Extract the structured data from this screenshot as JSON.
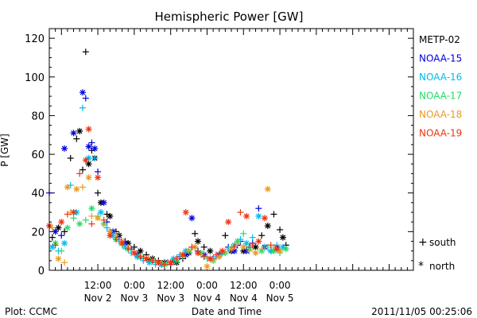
{
  "chart_data": {
    "type": "scatter",
    "title": "Hemispheric Power [GW]",
    "xlabel": "Date and Time",
    "ylabel": "P [GW]",
    "xlim_hours": [
      -4,
      116
    ],
    "ylim": [
      0,
      125
    ],
    "yticks": [
      0,
      20,
      40,
      60,
      80,
      100,
      120
    ],
    "xticks": [
      {
        "h": 12,
        "time": "12:00",
        "date": "Nov 2"
      },
      {
        "h": 24,
        "time": "0:00",
        "date": "Nov 3"
      },
      {
        "h": 36,
        "time": "12:00",
        "date": "Nov 3"
      },
      {
        "h": 48,
        "time": "0:00",
        "date": "Nov 4"
      },
      {
        "h": 60,
        "time": "12:00",
        "date": "Nov 4"
      },
      {
        "h": 72,
        "time": "0:00",
        "date": "Nov 5"
      }
    ],
    "x_origin": "2011-11-02 00:00",
    "legend_position": "right",
    "marker_legend": [
      {
        "symbol": "+",
        "label": "south"
      },
      {
        "symbol": "*",
        "label": "north"
      }
    ],
    "series": [
      {
        "name": "METP-02",
        "color": "#000000",
        "points": [
          [
            -3,
            17,
            "s"
          ],
          [
            -1,
            22,
            "n"
          ],
          [
            1,
            20,
            "s"
          ],
          [
            3,
            58,
            "s"
          ],
          [
            5,
            68,
            "s"
          ],
          [
            6,
            72,
            "n"
          ],
          [
            7,
            52,
            "s"
          ],
          [
            8,
            113,
            "s"
          ],
          [
            9,
            55,
            "n"
          ],
          [
            10,
            62,
            "s"
          ],
          [
            11,
            58,
            "n"
          ],
          [
            12,
            40,
            "s"
          ],
          [
            13,
            35,
            "n"
          ],
          [
            15,
            29,
            "s"
          ],
          [
            16,
            28,
            "n"
          ],
          [
            18,
            20,
            "s"
          ],
          [
            19,
            18,
            "n"
          ],
          [
            21,
            15,
            "s"
          ],
          [
            22,
            14,
            "n"
          ],
          [
            24,
            12,
            "s"
          ],
          [
            26,
            10,
            "n"
          ],
          [
            28,
            8,
            "s"
          ],
          [
            30,
            6,
            "n"
          ],
          [
            32,
            5,
            "s"
          ],
          [
            34,
            4,
            "n"
          ],
          [
            36,
            3,
            "s"
          ],
          [
            38,
            4,
            "n"
          ],
          [
            40,
            6,
            "s"
          ],
          [
            42,
            9,
            "n"
          ],
          [
            44,
            19,
            "s"
          ],
          [
            45,
            15,
            "n"
          ],
          [
            47,
            12,
            "s"
          ],
          [
            49,
            10,
            "n"
          ],
          [
            52,
            8,
            "s"
          ],
          [
            54,
            18,
            "s"
          ],
          [
            56,
            10,
            "n"
          ],
          [
            58,
            13,
            "s"
          ],
          [
            60,
            10,
            "n"
          ],
          [
            62,
            12,
            "s"
          ],
          [
            64,
            12,
            "n"
          ],
          [
            66,
            18,
            "s"
          ],
          [
            68,
            23,
            "n"
          ],
          [
            70,
            29,
            "s"
          ],
          [
            72,
            21,
            "s"
          ],
          [
            73,
            17,
            "n"
          ],
          [
            74,
            13,
            "s"
          ]
        ]
      },
      {
        "name": "NOAA-15",
        "color": "#0000dd",
        "points": [
          [
            -4,
            40,
            "s"
          ],
          [
            -2,
            20,
            "n"
          ],
          [
            0,
            18,
            "s"
          ],
          [
            1,
            63,
            "n"
          ],
          [
            4,
            71,
            "n"
          ],
          [
            7,
            92,
            "n"
          ],
          [
            8,
            89,
            "s"
          ],
          [
            9,
            64,
            "n"
          ],
          [
            10,
            66,
            "s"
          ],
          [
            11,
            63,
            "n"
          ],
          [
            12,
            51,
            "s"
          ],
          [
            14,
            35,
            "n"
          ],
          [
            15,
            25,
            "s"
          ],
          [
            17,
            20,
            "n"
          ],
          [
            19,
            16,
            "s"
          ],
          [
            21,
            14,
            "n"
          ],
          [
            23,
            11,
            "s"
          ],
          [
            25,
            8,
            "n"
          ],
          [
            27,
            6,
            "s"
          ],
          [
            29,
            5,
            "n"
          ],
          [
            31,
            4,
            "s"
          ],
          [
            33,
            3,
            "n"
          ],
          [
            35,
            4,
            "s"
          ],
          [
            37,
            5,
            "n"
          ],
          [
            39,
            7,
            "s"
          ],
          [
            41,
            8,
            "n"
          ],
          [
            43,
            27,
            "n"
          ],
          [
            45,
            10,
            "s"
          ],
          [
            47,
            8,
            "n"
          ],
          [
            50,
            6,
            "s"
          ],
          [
            52,
            8,
            "n"
          ],
          [
            55,
            12,
            "s"
          ],
          [
            57,
            10,
            "n"
          ],
          [
            59,
            15,
            "s"
          ],
          [
            61,
            10,
            "n"
          ],
          [
            63,
            14,
            "s"
          ],
          [
            65,
            32,
            "s"
          ],
          [
            67,
            12,
            "n"
          ],
          [
            69,
            10,
            "s"
          ],
          [
            71,
            12,
            "n"
          ]
        ]
      },
      {
        "name": "NOAA-16",
        "color": "#00bbee",
        "points": [
          [
            -3,
            12,
            "n"
          ],
          [
            -1,
            10,
            "s"
          ],
          [
            1,
            14,
            "n"
          ],
          [
            3,
            44,
            "s"
          ],
          [
            5,
            30,
            "n"
          ],
          [
            7,
            84,
            "s"
          ],
          [
            9,
            58,
            "n"
          ],
          [
            11,
            58,
            "s"
          ],
          [
            13,
            30,
            "n"
          ],
          [
            15,
            22,
            "s"
          ],
          [
            17,
            18,
            "n"
          ],
          [
            19,
            15,
            "s"
          ],
          [
            21,
            12,
            "n"
          ],
          [
            23,
            9,
            "s"
          ],
          [
            25,
            7,
            "n"
          ],
          [
            27,
            5,
            "s"
          ],
          [
            29,
            4,
            "n"
          ],
          [
            31,
            3,
            "s"
          ],
          [
            33,
            3,
            "n"
          ],
          [
            35,
            4,
            "s"
          ],
          [
            37,
            6,
            "n"
          ],
          [
            39,
            8,
            "s"
          ],
          [
            41,
            10,
            "n"
          ],
          [
            43,
            12,
            "s"
          ],
          [
            45,
            9,
            "n"
          ],
          [
            47,
            7,
            "s"
          ],
          [
            49,
            6,
            "n"
          ],
          [
            51,
            7,
            "s"
          ],
          [
            53,
            9,
            "n"
          ],
          [
            55,
            11,
            "s"
          ],
          [
            57,
            13,
            "n"
          ],
          [
            59,
            16,
            "s"
          ],
          [
            61,
            14,
            "n"
          ],
          [
            63,
            17,
            "s"
          ],
          [
            65,
            28,
            "n"
          ],
          [
            67,
            12,
            "s"
          ],
          [
            69,
            10,
            "n"
          ],
          [
            71,
            13,
            "s"
          ],
          [
            73,
            12,
            "n"
          ]
        ]
      },
      {
        "name": "NOAA-17",
        "color": "#22dd66",
        "points": [
          [
            -2,
            14,
            "n"
          ],
          [
            0,
            10,
            "s"
          ],
          [
            2,
            22,
            "n"
          ],
          [
            4,
            27,
            "s"
          ],
          [
            6,
            24,
            "n"
          ],
          [
            8,
            26,
            "s"
          ],
          [
            10,
            32,
            "n"
          ],
          [
            12,
            28,
            "s"
          ],
          [
            14,
            24,
            "n"
          ],
          [
            16,
            20,
            "s"
          ],
          [
            18,
            16,
            "n"
          ],
          [
            20,
            13,
            "s"
          ],
          [
            22,
            11,
            "n"
          ],
          [
            24,
            9,
            "s"
          ],
          [
            26,
            7,
            "n"
          ],
          [
            28,
            6,
            "s"
          ],
          [
            30,
            5,
            "n"
          ],
          [
            32,
            4,
            "s"
          ],
          [
            34,
            3,
            "n"
          ],
          [
            36,
            4,
            "s"
          ],
          [
            38,
            5,
            "n"
          ],
          [
            40,
            7,
            "s"
          ],
          [
            42,
            10,
            "n"
          ],
          [
            44,
            12,
            "s"
          ],
          [
            46,
            9,
            "n"
          ],
          [
            48,
            6,
            "s"
          ],
          [
            50,
            5,
            "n"
          ],
          [
            52,
            7,
            "s"
          ],
          [
            54,
            9,
            "n"
          ],
          [
            56,
            12,
            "s"
          ],
          [
            58,
            15,
            "n"
          ],
          [
            60,
            19,
            "s"
          ],
          [
            62,
            11,
            "n"
          ],
          [
            64,
            9,
            "s"
          ],
          [
            66,
            10,
            "n"
          ],
          [
            68,
            12,
            "s"
          ],
          [
            70,
            10,
            "n"
          ],
          [
            72,
            9,
            "s"
          ],
          [
            74,
            11,
            "n"
          ]
        ]
      },
      {
        "name": "NOAA-18",
        "color": "#ee9922",
        "points": [
          [
            -3,
            22,
            "s"
          ],
          [
            -1,
            6,
            "n"
          ],
          [
            1,
            4,
            "s"
          ],
          [
            2,
            43,
            "n"
          ],
          [
            3,
            30,
            "s"
          ],
          [
            5,
            42,
            "n"
          ],
          [
            7,
            43,
            "s"
          ],
          [
            9,
            48,
            "n"
          ],
          [
            10,
            28,
            "s"
          ],
          [
            12,
            27,
            "n"
          ],
          [
            14,
            24,
            "s"
          ],
          [
            16,
            20,
            "n"
          ],
          [
            18,
            18,
            "s"
          ],
          [
            20,
            15,
            "n"
          ],
          [
            22,
            12,
            "s"
          ],
          [
            24,
            9,
            "n"
          ],
          [
            26,
            7,
            "s"
          ],
          [
            28,
            6,
            "n"
          ],
          [
            30,
            5,
            "s"
          ],
          [
            32,
            4,
            "n"
          ],
          [
            34,
            3,
            "s"
          ],
          [
            36,
            4,
            "n"
          ],
          [
            38,
            6,
            "s"
          ],
          [
            40,
            8,
            "n"
          ],
          [
            42,
            10,
            "s"
          ],
          [
            44,
            12,
            "n"
          ],
          [
            46,
            8,
            "s"
          ],
          [
            48,
            2,
            "n"
          ],
          [
            50,
            5,
            "s"
          ],
          [
            52,
            7,
            "n"
          ],
          [
            54,
            9,
            "s"
          ],
          [
            56,
            11,
            "n"
          ],
          [
            58,
            14,
            "s"
          ],
          [
            60,
            12,
            "n"
          ],
          [
            62,
            10,
            "s"
          ],
          [
            64,
            9,
            "n"
          ],
          [
            66,
            11,
            "s"
          ],
          [
            68,
            42,
            "n"
          ],
          [
            70,
            12,
            "s"
          ],
          [
            72,
            10,
            "n"
          ]
        ]
      },
      {
        "name": "NOAA-19",
        "color": "#ee3311",
        "points": [
          [
            -4,
            23,
            "n"
          ],
          [
            -2,
            13,
            "s"
          ],
          [
            0,
            25,
            "n"
          ],
          [
            2,
            29,
            "s"
          ],
          [
            4,
            30,
            "n"
          ],
          [
            6,
            50,
            "s"
          ],
          [
            8,
            57,
            "n"
          ],
          [
            9,
            73,
            "n"
          ],
          [
            10,
            24,
            "s"
          ],
          [
            12,
            48,
            "n"
          ],
          [
            14,
            26,
            "s"
          ],
          [
            16,
            18,
            "n"
          ],
          [
            18,
            16,
            "s"
          ],
          [
            20,
            14,
            "n"
          ],
          [
            22,
            11,
            "s"
          ],
          [
            24,
            9,
            "n"
          ],
          [
            26,
            7,
            "s"
          ],
          [
            28,
            6,
            "n"
          ],
          [
            30,
            5,
            "s"
          ],
          [
            32,
            4,
            "n"
          ],
          [
            34,
            3,
            "s"
          ],
          [
            36,
            4,
            "n"
          ],
          [
            38,
            6,
            "s"
          ],
          [
            40,
            8,
            "n"
          ],
          [
            41,
            30,
            "n"
          ],
          [
            43,
            12,
            "s"
          ],
          [
            45,
            9,
            "n"
          ],
          [
            47,
            7,
            "s"
          ],
          [
            49,
            6,
            "n"
          ],
          [
            51,
            8,
            "s"
          ],
          [
            53,
            10,
            "n"
          ],
          [
            55,
            25,
            "n"
          ],
          [
            57,
            12,
            "s"
          ],
          [
            59,
            30,
            "s"
          ],
          [
            61,
            28,
            "n"
          ],
          [
            63,
            13,
            "s"
          ],
          [
            65,
            15,
            "n"
          ],
          [
            67,
            27,
            "n"
          ],
          [
            69,
            13,
            "s"
          ],
          [
            71,
            11,
            "n"
          ]
        ]
      }
    ]
  },
  "footer": {
    "left": "Plot: CCMC",
    "right": "2011/11/05 00:25:06"
  }
}
